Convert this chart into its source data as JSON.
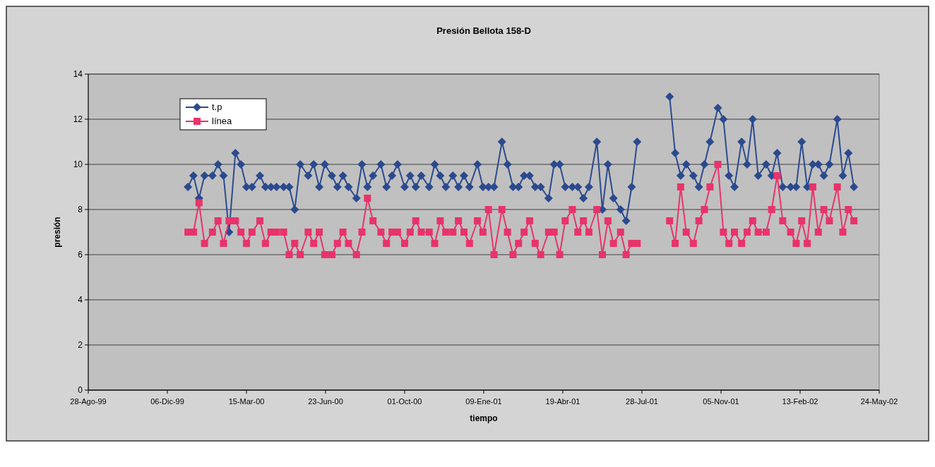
{
  "chart_data": {
    "type": "line",
    "title": "Presión Bellota 158-D",
    "xlabel": "tiempo",
    "ylabel": "presión",
    "x": [
      "2000-01-01",
      "2000-01-08",
      "2000-01-15",
      "2000-01-22",
      "2000-02-01",
      "2000-02-08",
      "2000-02-15",
      "2000-02-22",
      "2000-03-01",
      "2000-03-08",
      "2000-03-15",
      "2000-03-22",
      "2000-04-01",
      "2000-04-08",
      "2000-04-15",
      "2000-04-22",
      "2000-05-01",
      "2000-05-08",
      "2000-05-15",
      "2000-05-22",
      "2000-06-01",
      "2000-06-08",
      "2000-06-15",
      "2000-06-22",
      "2000-07-01",
      "2000-07-08",
      "2000-07-15",
      "2000-07-22",
      "2000-08-01",
      "2000-08-08",
      "2000-08-15",
      "2000-08-22",
      "2000-09-01",
      "2000-09-08",
      "2000-09-15",
      "2000-09-22",
      "2000-10-01",
      "2000-10-08",
      "2000-10-15",
      "2000-10-22",
      "2000-11-01",
      "2000-11-08",
      "2000-11-15",
      "2000-11-22",
      "2000-12-01",
      "2000-12-08",
      "2000-12-15",
      "2000-12-22",
      "2001-01-01",
      "2001-01-08",
      "2001-01-15",
      "2001-01-22",
      "2001-02-01",
      "2001-02-08",
      "2001-02-15",
      "2001-02-22",
      "2001-03-01",
      "2001-03-08",
      "2001-03-15",
      "2001-03-22",
      "2001-04-01",
      "2001-04-08",
      "2001-04-15",
      "2001-04-22",
      "2001-05-01",
      "2001-05-08",
      "2001-05-15",
      "2001-05-22",
      "2001-06-01",
      "2001-06-08",
      "2001-06-15",
      "2001-06-22",
      "2001-07-01",
      "2001-07-08",
      "2001-07-15",
      "2001-07-22",
      "2001-08-15",
      "2001-09-01",
      "2001-09-08",
      "2001-09-15",
      "2001-09-22",
      "2001-10-01",
      "2001-10-08",
      "2001-10-15",
      "2001-10-22",
      "2001-11-01",
      "2001-11-08",
      "2001-11-15",
      "2001-11-22",
      "2001-12-01",
      "2001-12-08",
      "2001-12-15",
      "2001-12-22",
      "2002-01-01",
      "2002-01-08",
      "2002-01-15",
      "2002-01-22",
      "2002-02-01",
      "2002-02-08",
      "2002-02-15",
      "2002-02-22",
      "2002-03-01",
      "2002-03-08",
      "2002-03-15",
      "2002-03-22",
      "2002-04-01",
      "2002-04-08",
      "2002-04-15",
      "2002-04-22"
    ],
    "series": [
      {
        "name": "t.p",
        "color": "#2b4a8e",
        "marker": "diamond",
        "values": [
          9,
          9.5,
          8.5,
          9.5,
          9.5,
          10,
          9.5,
          7,
          10.5,
          10,
          9,
          9,
          9.5,
          9,
          9,
          9,
          9,
          9,
          8,
          10,
          9.5,
          10,
          9,
          10,
          9.5,
          9,
          9.5,
          9,
          8.5,
          10,
          9,
          9.5,
          10,
          9,
          9.5,
          10,
          9,
          9.5,
          9,
          9.5,
          9,
          10,
          9.5,
          9,
          9.5,
          9,
          9.5,
          9,
          10,
          9,
          9,
          9,
          11,
          10,
          9,
          9,
          9.5,
          9.5,
          9,
          9,
          8.5,
          10,
          10,
          9,
          9,
          9,
          8.5,
          9,
          11,
          8,
          10,
          8.5,
          8,
          7.5,
          9,
          11,
          null,
          13,
          10.5,
          9.5,
          10,
          9.5,
          9,
          10,
          11,
          12.5,
          12,
          9.5,
          9,
          11,
          10,
          12,
          9.5,
          10,
          9.5,
          10.5,
          9,
          9,
          9,
          11,
          9,
          10,
          10,
          9.5,
          10,
          12,
          9.5,
          10.5,
          9
        ]
      },
      {
        "name": "línea",
        "color": "#e8336b",
        "marker": "square",
        "values": [
          7,
          7,
          8.3,
          6.5,
          7,
          7.5,
          6.5,
          7.5,
          7.5,
          7,
          6.5,
          7,
          7.5,
          6.5,
          7,
          7,
          7,
          6,
          6.5,
          6,
          7,
          6.5,
          7,
          6,
          6,
          6.5,
          7,
          6.5,
          6,
          7,
          8.5,
          7.5,
          7,
          6.5,
          7,
          7,
          6.5,
          7,
          7.5,
          7,
          7,
          6.5,
          7.5,
          7,
          7,
          7.5,
          7,
          6.5,
          7.5,
          7,
          8,
          6,
          8,
          7,
          6,
          6.5,
          7,
          7.5,
          6.5,
          6,
          7,
          7,
          6,
          7.5,
          8,
          7,
          7.5,
          7,
          8,
          6,
          7.5,
          6.5,
          7,
          6,
          6.5,
          6.5,
          null,
          7.5,
          6.5,
          9,
          7,
          6.5,
          7.5,
          8,
          9,
          10,
          7,
          6.5,
          7,
          6.5,
          7,
          7.5,
          7,
          7,
          8,
          9.5,
          7.5,
          7,
          6.5,
          7.5,
          6.5,
          9,
          7,
          8,
          7.5,
          9,
          7,
          8,
          7.5
        ]
      }
    ],
    "xlim": [
      "1999-08-28",
      "2002-05-24"
    ],
    "xticks": [
      {
        "value": "1999-08-28",
        "label": "28-Ago-99"
      },
      {
        "value": "1999-12-06",
        "label": "06-Dic-99"
      },
      {
        "value": "2000-03-15",
        "label": "15-Mar-00"
      },
      {
        "value": "2000-06-23",
        "label": "23-Jun-00"
      },
      {
        "value": "2000-10-01",
        "label": "01-Oct-00"
      },
      {
        "value": "2001-01-09",
        "label": "09-Ene-01"
      },
      {
        "value": "2001-04-19",
        "label": "19-Abr-01"
      },
      {
        "value": "2001-07-28",
        "label": "28-Jul-01"
      },
      {
        "value": "2001-11-05",
        "label": "05-Nov-01"
      },
      {
        "value": "2002-02-13",
        "label": "13-Feb-02"
      },
      {
        "value": "2002-05-24",
        "label": "24-May-02"
      }
    ],
    "ylim": [
      0,
      14
    ],
    "yticks": [
      0,
      2,
      4,
      6,
      8,
      10,
      12,
      14
    ],
    "grid": "y",
    "legend": "top left"
  }
}
